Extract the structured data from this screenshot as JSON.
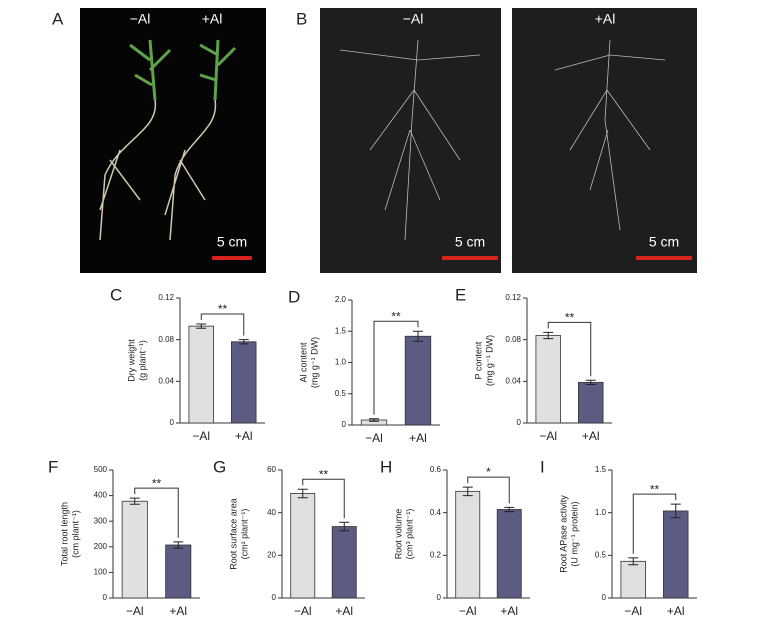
{
  "photo_panels": [
    {
      "label": "A",
      "captions": [
        "−Al",
        "+Al"
      ],
      "scale_bars": [
        "5 cm"
      ]
    },
    {
      "label": "B",
      "captions": [
        "−Al",
        "+Al"
      ],
      "scale_bars": [
        "5 cm",
        "5 cm"
      ]
    }
  ],
  "chart_data": [
    {
      "type": "bar",
      "panel": "C",
      "ylabel": [
        "Dry weight",
        "(g plant⁻¹)"
      ],
      "categories": [
        "−Al",
        "+Al"
      ],
      "values": [
        0.093,
        0.078
      ],
      "errors": [
        0.002,
        0.002
      ],
      "colors": [
        "#e0e0e0",
        "#5c5b82"
      ],
      "ylim": [
        0,
        0.12
      ],
      "yticks": [
        0,
        0.04,
        0.08,
        0.12
      ],
      "significance": "**"
    },
    {
      "type": "bar",
      "panel": "D",
      "ylabel": [
        "Al content",
        "(mg g⁻¹ DW)"
      ],
      "categories": [
        "−Al",
        "+Al"
      ],
      "values": [
        0.08,
        1.42
      ],
      "errors": [
        0.02,
        0.08
      ],
      "colors": [
        "#e0e0e0",
        "#5c5b82"
      ],
      "ylim": [
        0,
        2.0
      ],
      "yticks": [
        0,
        0.5,
        {
          "value": 1.0,
          "label": "1.0"
        },
        1.5,
        {
          "value": 2.0,
          "label": "2.0"
        }
      ],
      "significance": "**"
    },
    {
      "type": "bar",
      "panel": "E",
      "ylabel": [
        "P content",
        "(mg g⁻¹ DW)"
      ],
      "categories": [
        "−Al",
        "+Al"
      ],
      "values": [
        0.084,
        0.039
      ],
      "errors": [
        0.003,
        0.002
      ],
      "colors": [
        "#e0e0e0",
        "#5c5b82"
      ],
      "ylim": [
        0,
        0.12
      ],
      "yticks": [
        0,
        0.04,
        0.08,
        0.12
      ],
      "significance": "**"
    },
    {
      "type": "bar",
      "panel": "F",
      "ylabel": [
        "Total root length",
        "(cm plant⁻¹)"
      ],
      "categories": [
        "−Al",
        "+Al"
      ],
      "values": [
        378,
        207
      ],
      "errors": [
        12,
        12
      ],
      "colors": [
        "#e0e0e0",
        "#5c5b82"
      ],
      "ylim": [
        0,
        500
      ],
      "yticks": [
        0,
        100,
        200,
        300,
        400,
        500
      ],
      "significance": "**"
    },
    {
      "type": "bar",
      "panel": "G",
      "ylabel": [
        "Root surface area",
        "(cm² plant⁻¹)"
      ],
      "categories": [
        "−Al",
        "+Al"
      ],
      "values": [
        49,
        33.5
      ],
      "errors": [
        2,
        2
      ],
      "colors": [
        "#e0e0e0",
        "#5c5b82"
      ],
      "ylim": [
        0,
        60
      ],
      "yticks": [
        0,
        20,
        40,
        60
      ],
      "significance": "**"
    },
    {
      "type": "bar",
      "panel": "H",
      "ylabel": [
        "Root volume",
        "(cm³ plant⁻¹)"
      ],
      "categories": [
        "−Al",
        "+Al"
      ],
      "values": [
        0.5,
        0.415
      ],
      "errors": [
        0.02,
        0.01
      ],
      "colors": [
        "#e0e0e0",
        "#5c5b82"
      ],
      "ylim": [
        0,
        0.6
      ],
      "yticks": [
        0,
        0.2,
        0.4,
        0.6
      ],
      "significance": "*"
    },
    {
      "type": "bar",
      "panel": "I",
      "ylabel": [
        "Root APase activity",
        "(U mg⁻¹ protein)"
      ],
      "categories": [
        "−Al",
        "+Al"
      ],
      "values": [
        0.43,
        1.02
      ],
      "errors": [
        0.04,
        0.08
      ],
      "colors": [
        "#e0e0e0",
        "#5c5b82"
      ],
      "ylim": [
        0,
        1.5
      ],
      "yticks": [
        0,
        0.5,
        {
          "value": 1.0,
          "label": "1.0"
        },
        1.5
      ],
      "significance": "**"
    }
  ]
}
